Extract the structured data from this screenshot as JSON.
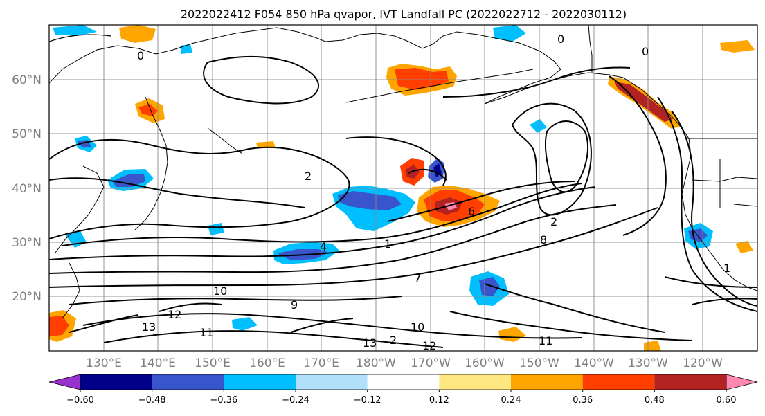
{
  "title": "2022022412 F054 850 hPa qvapor, IVT Landfall PC (2022022712 - 2022030112)",
  "map": {
    "lat_labels": [
      "60°N",
      "50°N",
      "40°N",
      "30°N",
      "20°N"
    ],
    "lon_labels": [
      "130°E",
      "140°E",
      "150°E",
      "160°E",
      "170°E",
      "180°W",
      "170°W",
      "160°W",
      "150°W",
      "140°W",
      "130°W",
      "120°W"
    ],
    "contour_labels": [
      "0",
      "0",
      "0",
      "1",
      "1",
      "2",
      "2",
      "2",
      "4",
      "6",
      "7",
      "8",
      "9",
      "10",
      "10",
      "11",
      "11",
      "12",
      "12",
      "13",
      "13"
    ]
  },
  "colorbar": {
    "colors": [
      "#9932cc",
      "#00008b",
      "#3955cc",
      "#00bfff",
      "#b0e0fa",
      "#ffffff",
      "#ffe882",
      "#ffa500",
      "#ff3e00",
      "#b22222",
      "#ff88b0"
    ],
    "ticks": [
      "−0.60",
      "−0.48",
      "−0.36",
      "−0.24",
      "−0.12",
      "0.12",
      "0.24",
      "0.36",
      "0.48",
      "0.60"
    ]
  },
  "colors": {
    "gridline": "#8a8a8a",
    "axis_label": "#808080",
    "contour": "#000000"
  }
}
